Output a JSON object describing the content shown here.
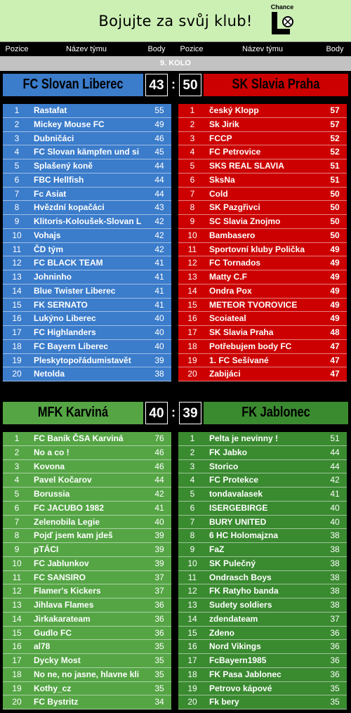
{
  "banner": {
    "slogan": "Bojujte za svůj klub!",
    "logo_text": "Chance"
  },
  "headers": {
    "pos": "Pozice",
    "name": "Název týmu",
    "pts": "Body"
  },
  "round_label": "9. KOLO",
  "colors": {
    "blue": "#3b7ccb",
    "red": "#cc0000",
    "green": "#55a545",
    "dark_green": "#3a8a30"
  },
  "matches": [
    {
      "home": {
        "name": "FC Slovan Liberec",
        "score": "43",
        "teams": [
          [
            "1",
            "Rastafat",
            "55"
          ],
          [
            "2",
            "Mickey Mouse FC",
            "49"
          ],
          [
            "3",
            "Dubničáci",
            "46"
          ],
          [
            "4",
            "FC Slovan kämpfen und si",
            "45"
          ],
          [
            "5",
            "Splašený koně",
            "44"
          ],
          [
            "6",
            "FBC Hellfish",
            "44"
          ],
          [
            "7",
            "Fc Asiat",
            "44"
          ],
          [
            "8",
            "Hvězdní kopačáci",
            "43"
          ],
          [
            "9",
            "Klitoris-Koloušek-Slovan L",
            "42"
          ],
          [
            "10",
            "Vohajs",
            "42"
          ],
          [
            "11",
            "ČD tým",
            "42"
          ],
          [
            "12",
            "FC BLACK TEAM",
            "41"
          ],
          [
            "13",
            "Johninho",
            "41"
          ],
          [
            "14",
            "Blue Twister Liberec",
            "41"
          ],
          [
            "15",
            "FK SERNATO",
            "41"
          ],
          [
            "16",
            "Lukýno Liberec",
            "40"
          ],
          [
            "17",
            "FC Highlanders",
            "40"
          ],
          [
            "18",
            "FC Bayern Liberec",
            "40"
          ],
          [
            "19",
            "Pleskytopořádumistavět",
            "39"
          ],
          [
            "20",
            "Netolda",
            "38"
          ]
        ]
      },
      "away": {
        "name": "SK Slavia Praha",
        "score": "50",
        "teams": [
          [
            "1",
            "český Klopp",
            "57"
          ],
          [
            "2",
            "Sk Jirik",
            "57"
          ],
          [
            "3",
            "FCCP",
            "52"
          ],
          [
            "4",
            "FC Petrovice",
            "52"
          ],
          [
            "5",
            "SKS REAL SLAVIA",
            "51"
          ],
          [
            "6",
            "SksNa",
            "51"
          ],
          [
            "7",
            "Cold",
            "50"
          ],
          [
            "8",
            "SK Pazgřivci",
            "50"
          ],
          [
            "9",
            "SC Slavia Znojmo",
            "50"
          ],
          [
            "10",
            "Bambasero",
            "50"
          ],
          [
            "11",
            "Sportovní kluby Polička",
            "49"
          ],
          [
            "12",
            "FC Tornados",
            "49"
          ],
          [
            "13",
            "Matty C.F",
            "49"
          ],
          [
            "14",
            "Ondra Pox",
            "49"
          ],
          [
            "15",
            "METEOR TVOROVICE",
            "49"
          ],
          [
            "16",
            "Scoiateal",
            "49"
          ],
          [
            "17",
            "SK Slavia Praha",
            "48"
          ],
          [
            "18",
            "Potřebujem body FC",
            "47"
          ],
          [
            "19",
            "1. FC Sešívané",
            "47"
          ],
          [
            "20",
            "Zabijáci",
            "47"
          ]
        ]
      }
    },
    {
      "home": {
        "name": "MFK Karviná",
        "score": "40",
        "teams": [
          [
            "1",
            "FC Baník ČSA Karviná",
            "76"
          ],
          [
            "2",
            "No a co !",
            "46"
          ],
          [
            "3",
            "Kovona",
            "46"
          ],
          [
            "4",
            "Pavel Kočarov",
            "44"
          ],
          [
            "5",
            "Borussia",
            "42"
          ],
          [
            "6",
            "FC JACUBO 1982",
            "41"
          ],
          [
            "7",
            "Zelenobila Legie",
            "40"
          ],
          [
            "8",
            "Pojď jsem kam jdeš",
            "39"
          ],
          [
            "9",
            "pTÁCI",
            "39"
          ],
          [
            "10",
            "FC Jablunkov",
            "39"
          ],
          [
            "11",
            "FC SANSIRO",
            "37"
          ],
          [
            "12",
            "Flamer's Kickers",
            "37"
          ],
          [
            "13",
            "Jihlava Flames",
            "36"
          ],
          [
            "14",
            "Jirkakarateam",
            "36"
          ],
          [
            "15",
            "Gudlo FC",
            "36"
          ],
          [
            "16",
            "al78",
            "35"
          ],
          [
            "17",
            "Dycky Most",
            "35"
          ],
          [
            "18",
            "No ne, no jasne, hlavne kli",
            "35"
          ],
          [
            "19",
            "Kothy_cz",
            "35"
          ],
          [
            "20",
            "FC Bystritz",
            "34"
          ]
        ]
      },
      "away": {
        "name": "FK Jablonec",
        "score": "39",
        "teams": [
          [
            "1",
            "Pelta je nevinny !",
            "51"
          ],
          [
            "2",
            "FK Jabko",
            "44"
          ],
          [
            "3",
            "Storico",
            "44"
          ],
          [
            "4",
            "FC Protekce",
            "42"
          ],
          [
            "5",
            "tondavalasek",
            "41"
          ],
          [
            "6",
            "ISERGEBIRGE",
            "40"
          ],
          [
            "7",
            "BURY UNITED",
            "40"
          ],
          [
            "8",
            "6 HC Holomajzna",
            "38"
          ],
          [
            "9",
            "FaZ",
            "38"
          ],
          [
            "10",
            "SK Pulečný",
            "38"
          ],
          [
            "11",
            "Ondrasch Boys",
            "38"
          ],
          [
            "12",
            "FK Ratyho banda",
            "38"
          ],
          [
            "13",
            "Sudety soldiers",
            "38"
          ],
          [
            "14",
            "zdendateam",
            "37"
          ],
          [
            "15",
            "Zdeno",
            "36"
          ],
          [
            "16",
            "Nord Vikings",
            "36"
          ],
          [
            "17",
            "FcBayern1985",
            "36"
          ],
          [
            "18",
            "FK Pasa Jablonec",
            "36"
          ],
          [
            "19",
            "Petrovo kápové",
            "35"
          ],
          [
            "20",
            "Fk bery",
            "35"
          ]
        ]
      }
    }
  ]
}
